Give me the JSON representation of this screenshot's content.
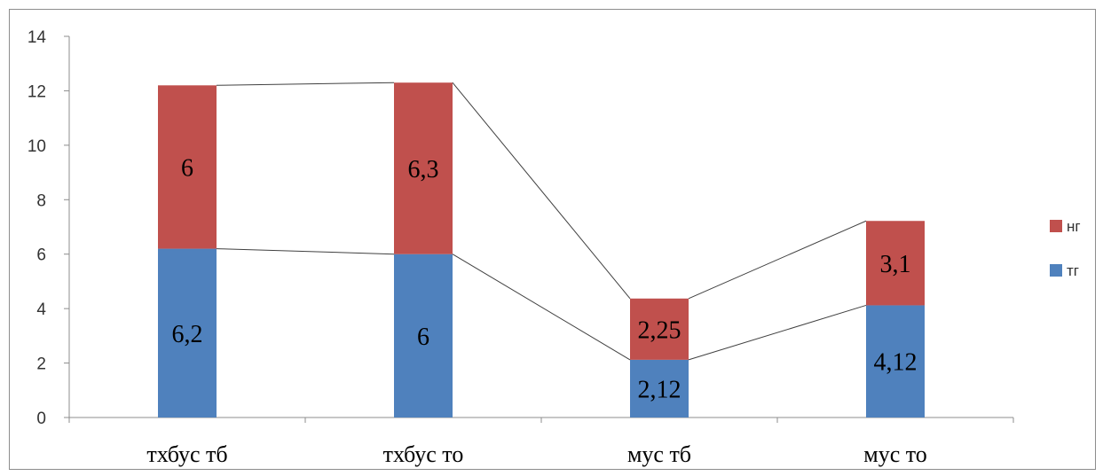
{
  "chart_data": {
    "type": "bar",
    "stacked": true,
    "categories": [
      "тхбус тб",
      "тхбус то",
      "мус тб",
      "мус то"
    ],
    "series": [
      {
        "name": "тг",
        "values": [
          6.2,
          6,
          2.12,
          4.12
        ],
        "labels": [
          "6,2",
          "6",
          "2,12",
          "4,12"
        ],
        "color": "#4f81bd"
      },
      {
        "name": "нг",
        "values": [
          6,
          6.3,
          2.25,
          3.1
        ],
        "labels": [
          "6",
          "6,3",
          "2,25",
          "3,1"
        ],
        "color": "#c0504d"
      }
    ],
    "series_lines": true,
    "ylim": [
      0,
      14
    ],
    "yticks": [
      "0",
      "2",
      "4",
      "6",
      "8",
      "10",
      "12",
      "14"
    ],
    "legend_position": "right",
    "legend_order": [
      "нг",
      "тг"
    ],
    "title": "",
    "xlabel": "",
    "ylabel": ""
  }
}
